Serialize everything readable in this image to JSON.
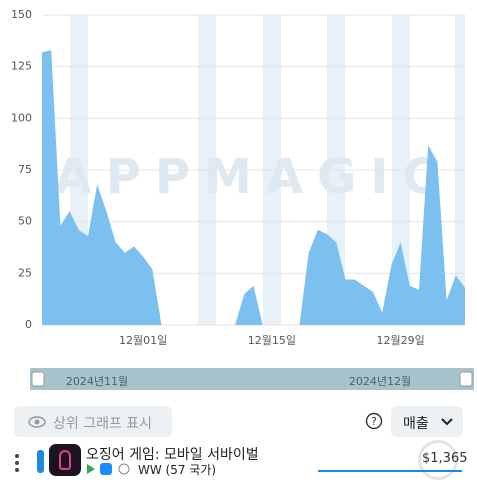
{
  "chart_data": {
    "type": "area",
    "watermark": "APPMAGIC",
    "color": "#7cc0ef",
    "categories": [
      null,
      null,
      null,
      null,
      null,
      null,
      null,
      null,
      null,
      null,
      null,
      "12월01일",
      null,
      null,
      null,
      null,
      null,
      null,
      null,
      null,
      null,
      null,
      null,
      null,
      null,
      "12월15일",
      null,
      null,
      null,
      null,
      null,
      null,
      null,
      null,
      null,
      null,
      null,
      null,
      null,
      "12월29일",
      null,
      null,
      null,
      null,
      null,
      null,
      null
    ],
    "values": [
      132,
      133,
      48,
      55,
      46,
      43,
      68,
      55,
      40,
      35,
      38,
      33,
      27,
      0,
      0,
      0,
      0,
      0,
      0,
      0,
      0,
      0,
      15,
      19,
      0,
      0,
      0,
      0,
      0,
      35,
      46,
      44,
      40,
      22,
      22,
      19,
      16,
      6,
      29,
      40,
      19,
      17,
      87,
      79,
      12,
      24,
      18
    ],
    "ylim": [
      0,
      150
    ],
    "yticks": [
      0,
      25,
      50,
      75,
      100,
      125,
      150
    ],
    "grid": true,
    "range_labels": [
      "2024년11월",
      "2024년12월"
    ]
  },
  "controls": {
    "show_top_graph": "상위 그래프 표시",
    "metric": "매출"
  },
  "app": {
    "name": "오징어 게임: 모바일 서바이벌",
    "region": "WW (57 국가)",
    "value": "$1,365"
  }
}
